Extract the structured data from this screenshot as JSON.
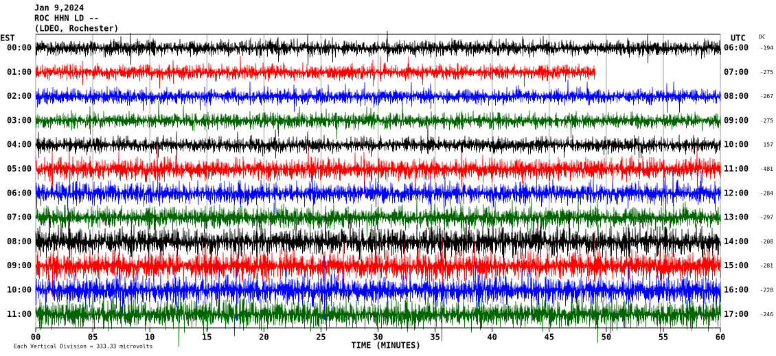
{
  "chart_data": {
    "type": "helicorder",
    "title_lines": [
      "Jan 9,2024",
      "ROC HHN LD --",
      "(LDEO, Rochester)"
    ],
    "left_axis_label": "EST",
    "right_axis_label": "UTC",
    "dc_label": "DC",
    "xlabel": "TIME (MINUTES)",
    "scale_note": "Each Vertical Division =  333.33 microvolts",
    "xlim": [
      0,
      60
    ],
    "xticks": [
      {
        "value": 0,
        "label": "00"
      },
      {
        "value": 5,
        "label": "05"
      },
      10,
      15,
      20,
      25,
      30,
      35,
      40,
      45,
      50,
      55,
      60
    ],
    "grid": true,
    "rows": [
      {
        "est": "00:00",
        "utc": "06:00",
        "dc": -194,
        "color": "#000000",
        "end_minute": 60
      },
      {
        "est": "01:00",
        "utc": "07:00",
        "dc": -275,
        "color": "#ff0000",
        "end_minute": 49
      },
      {
        "est": "02:00",
        "utc": "08:00",
        "dc": -267,
        "color": "#0000ff",
        "end_minute": 60
      },
      {
        "est": "03:00",
        "utc": "09:00",
        "dc": -275,
        "color": "#006400",
        "end_minute": 60
      },
      {
        "est": "04:00",
        "utc": "10:00",
        "dc": 157,
        "color": "#000000",
        "end_minute": 60
      },
      {
        "est": "05:00",
        "utc": "11:00",
        "dc": -481,
        "color": "#ff0000",
        "end_minute": 60
      },
      {
        "est": "06:00",
        "utc": "12:00",
        "dc": -284,
        "color": "#0000ff",
        "end_minute": 60
      },
      {
        "est": "07:00",
        "utc": "13:00",
        "dc": -297,
        "color": "#006400",
        "end_minute": 60
      },
      {
        "est": "08:00",
        "utc": "14:00",
        "dc": -208,
        "color": "#000000",
        "end_minute": 60
      },
      {
        "est": "09:00",
        "utc": "15:00",
        "dc": -281,
        "color": "#ff0000",
        "end_minute": 60
      },
      {
        "est": "10:00",
        "utc": "16:00",
        "dc": -228,
        "color": "#0000ff",
        "end_minute": 60
      },
      {
        "est": "11:00",
        "utc": "17:00",
        "dc": -246,
        "color": "#006400",
        "end_minute": 60
      }
    ]
  }
}
